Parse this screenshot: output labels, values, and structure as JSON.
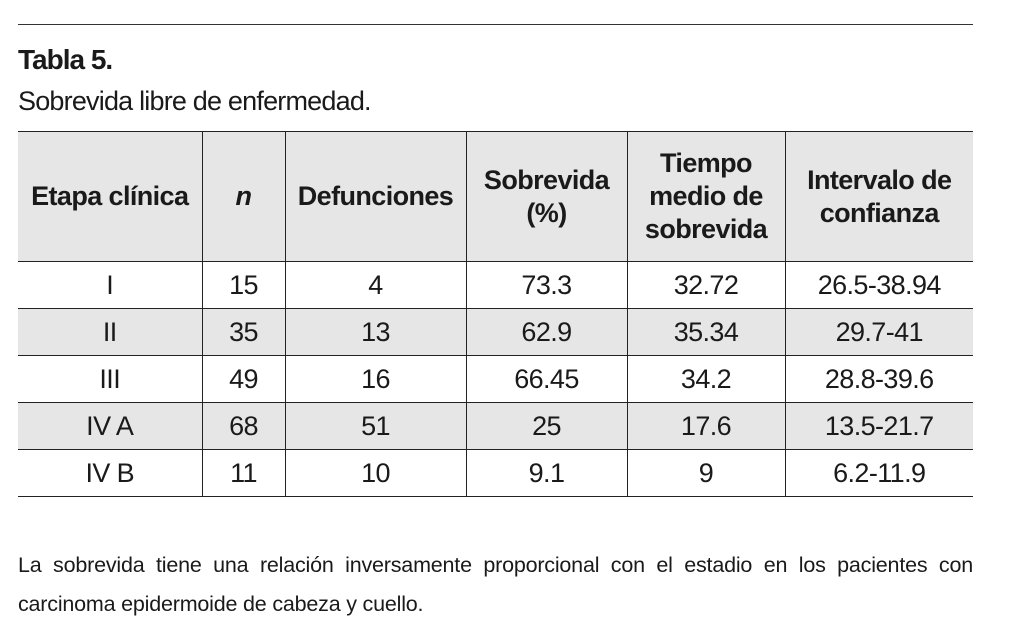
{
  "header": {
    "title": "Tabla 5.",
    "subtitle": "Sobrevida libre de enfermedad."
  },
  "table": {
    "columns": [
      "Etapa clínica",
      "n",
      "Defunciones",
      "Sobrevida\n(%)",
      "Tiempo\nmedio de\nsobrevida",
      "Intervalo de\nconfianza"
    ],
    "rows": [
      [
        "I",
        15,
        4,
        73.3,
        32.72,
        "26.5-38.94"
      ],
      [
        "II",
        35,
        13,
        62.9,
        35.34,
        "29.7-41"
      ],
      [
        "III",
        49,
        16,
        66.45,
        34.2,
        "28.8-39.6"
      ],
      [
        "IV A",
        68,
        51,
        25,
        17.6,
        "13.5-21.7"
      ],
      [
        "IV B",
        11,
        10,
        9.1,
        9,
        "6.2-11.9"
      ]
    ]
  },
  "note": "La sobrevida tiene una relación inversamente proporcional con el estadio en los pacientes con carcinoma epidermoide de cabeza y cuello."
}
